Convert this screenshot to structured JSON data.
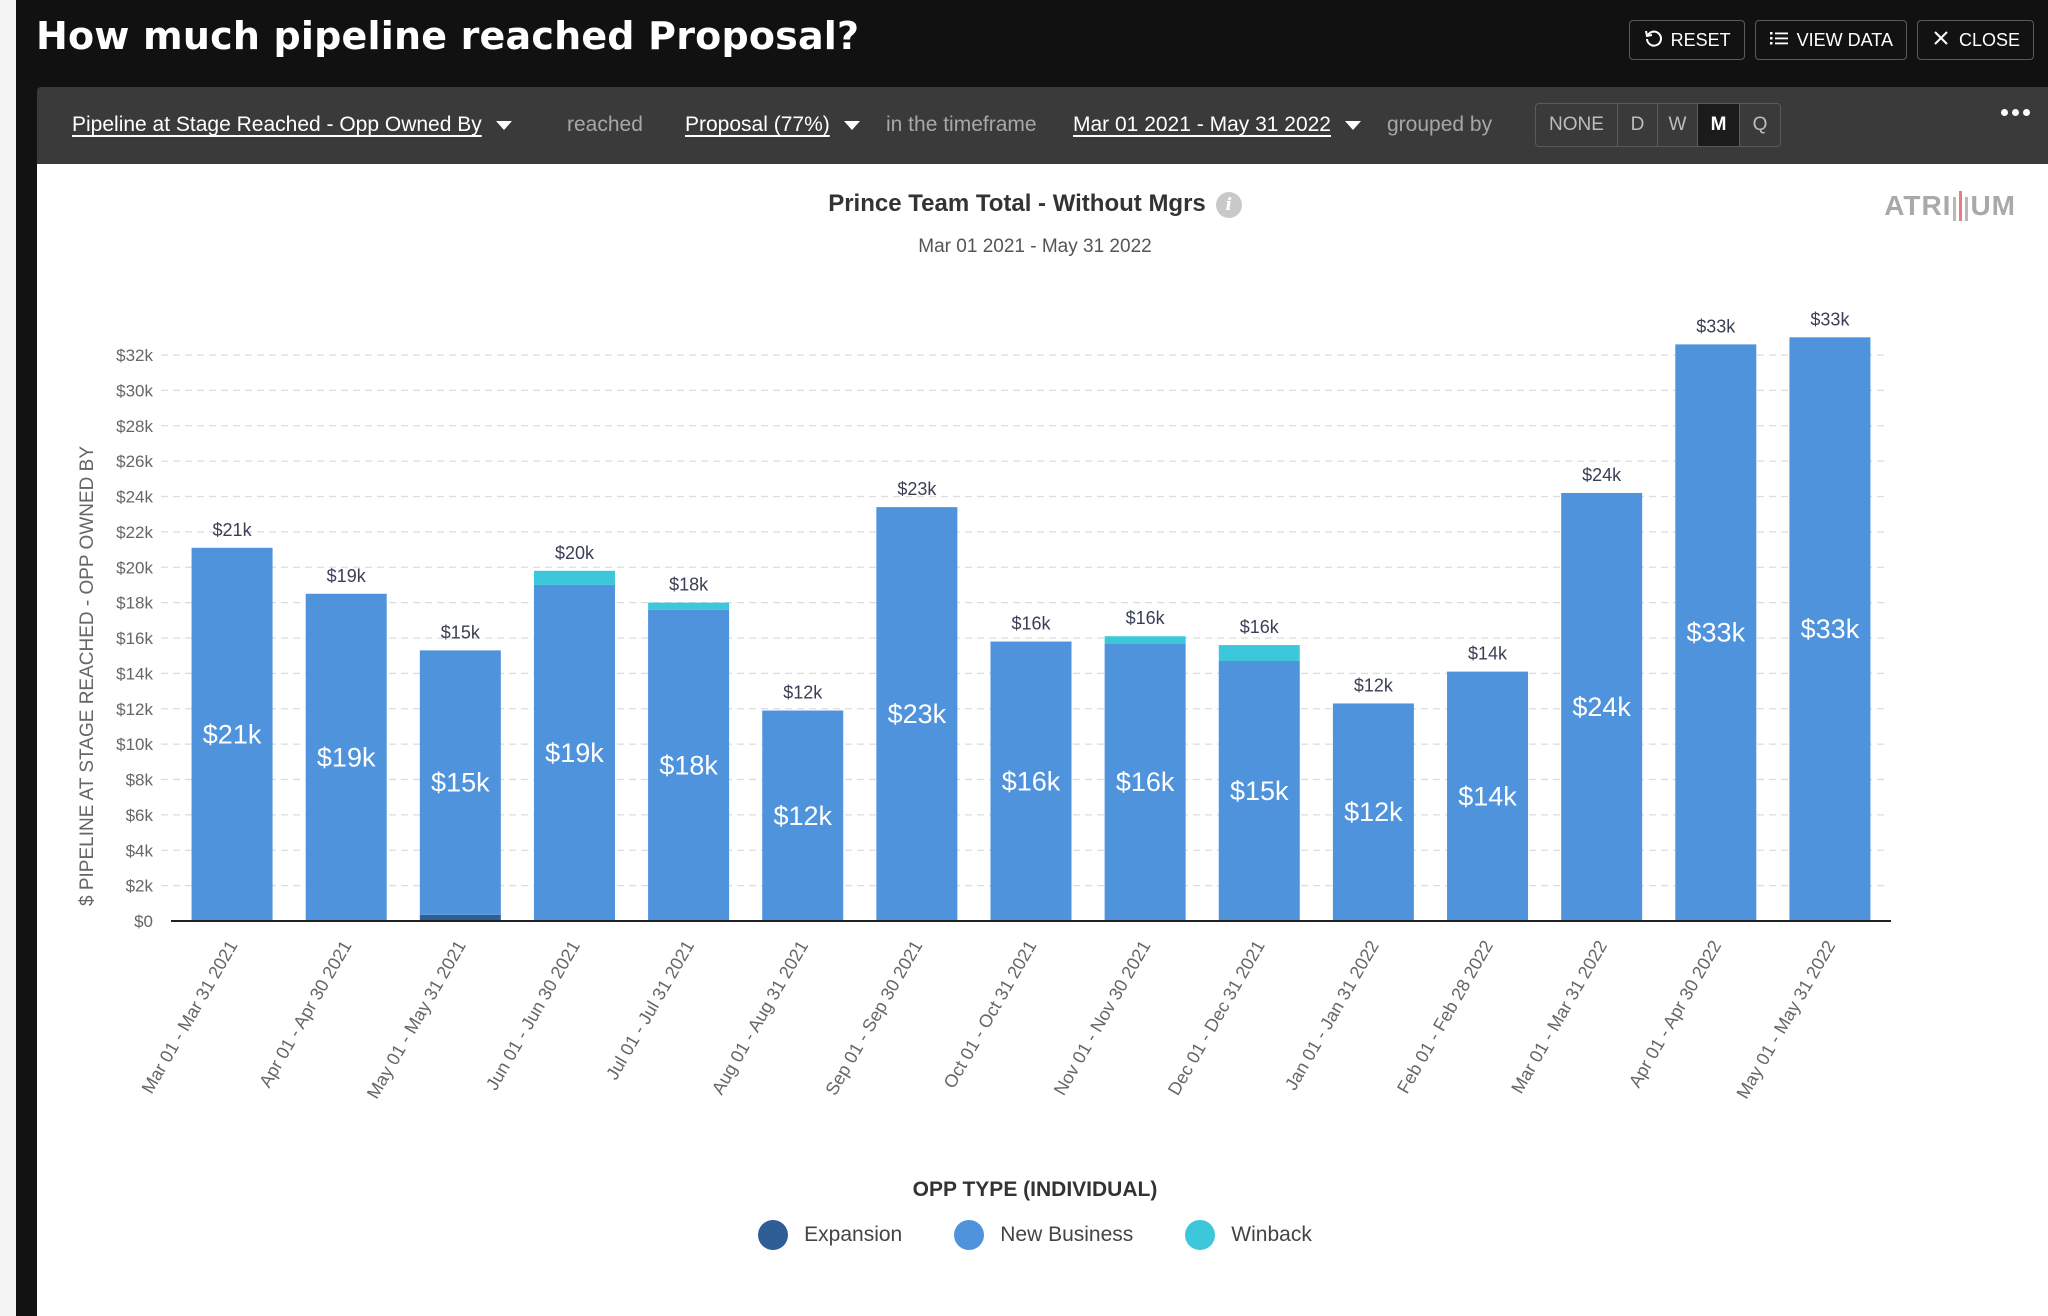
{
  "header": {
    "title": "How much pipeline reached Proposal?",
    "reset_label": "RESET",
    "view_data_label": "VIEW DATA",
    "close_label": "CLOSE"
  },
  "controls": {
    "metric": "Pipeline at Stage Reached - Opp Owned By",
    "reached_text": "reached",
    "stage": "Proposal (77%)",
    "timeframe_text": "in the timeframe",
    "timeframe": "Mar 01 2021 - May 31 2022",
    "grouped_by_text": "grouped by",
    "grouping_options": [
      "NONE",
      "D",
      "W",
      "M",
      "Q"
    ],
    "grouping_selected": "M"
  },
  "logo_text": {
    "left": "ATRI",
    "right": "UM"
  },
  "chart_data": {
    "type": "bar",
    "stacked": true,
    "title": "Prince Team Total - Without Mgrs",
    "subtitle": "Mar 01 2021 - May 31 2022",
    "ylabel": "$ PIPELINE AT STAGE REACHED - OPP OWNED BY",
    "xlabel": "",
    "ylim": [
      0,
      32000
    ],
    "yticks": [
      "$0",
      "$2k",
      "$4k",
      "$6k",
      "$8k",
      "$10k",
      "$12k",
      "$14k",
      "$16k",
      "$18k",
      "$20k",
      "$22k",
      "$24k",
      "$26k",
      "$28k",
      "$30k",
      "$32k"
    ],
    "grid": true,
    "categories": [
      "Mar 01 - Mar 31 2021",
      "Apr 01 - Apr 30 2021",
      "May 01 - May 31 2021",
      "Jun 01 - Jun 30 2021",
      "Jul 01 - Jul 31 2021",
      "Aug 01 - Aug 31 2021",
      "Sep 01 - Sep 30 2021",
      "Oct 01 - Oct 31 2021",
      "Nov 01 - Nov 30 2021",
      "Dec 01 - Dec 31 2021",
      "Jan 01 - Jan 31 2022",
      "Feb 01 - Feb 28 2022",
      "Mar 01 - Mar 31 2022",
      "Apr 01 - Apr 30 2022",
      "May 01 - May 31 2022"
    ],
    "series": [
      {
        "name": "Expansion",
        "color": "#2f5d96",
        "values": [
          0,
          0,
          350,
          0,
          0,
          0,
          0,
          0,
          0,
          0,
          0,
          0,
          0,
          0,
          0
        ]
      },
      {
        "name": "New Business",
        "color": "#5093dd",
        "values": [
          21100,
          18500,
          14950,
          19000,
          17600,
          11900,
          23400,
          15800,
          15700,
          14700,
          12300,
          14100,
          24200,
          32600,
          33000
        ]
      },
      {
        "name": "Winback",
        "color": "#3cc8da",
        "values": [
          0,
          0,
          0,
          800,
          400,
          0,
          0,
          0,
          400,
          900,
          0,
          0,
          0,
          0,
          0
        ]
      }
    ],
    "total_labels": [
      "$21k",
      "$19k",
      "$15k",
      "$20k",
      "$18k",
      "$12k",
      "$23k",
      "$16k",
      "$16k",
      "$16k",
      "$12k",
      "$14k",
      "$24k",
      "$33k",
      "$33k"
    ],
    "inner_labels": [
      "$21k",
      "$19k",
      "$15k",
      "$19k",
      "$18k",
      "$12k",
      "$23k",
      "$16k",
      "$16k",
      "$15k",
      "$12k",
      "$14k",
      "$24k",
      "$33k",
      "$33k"
    ],
    "legend_title": "OPP TYPE (INDIVIDUAL)",
    "legend_position": "bottom"
  }
}
